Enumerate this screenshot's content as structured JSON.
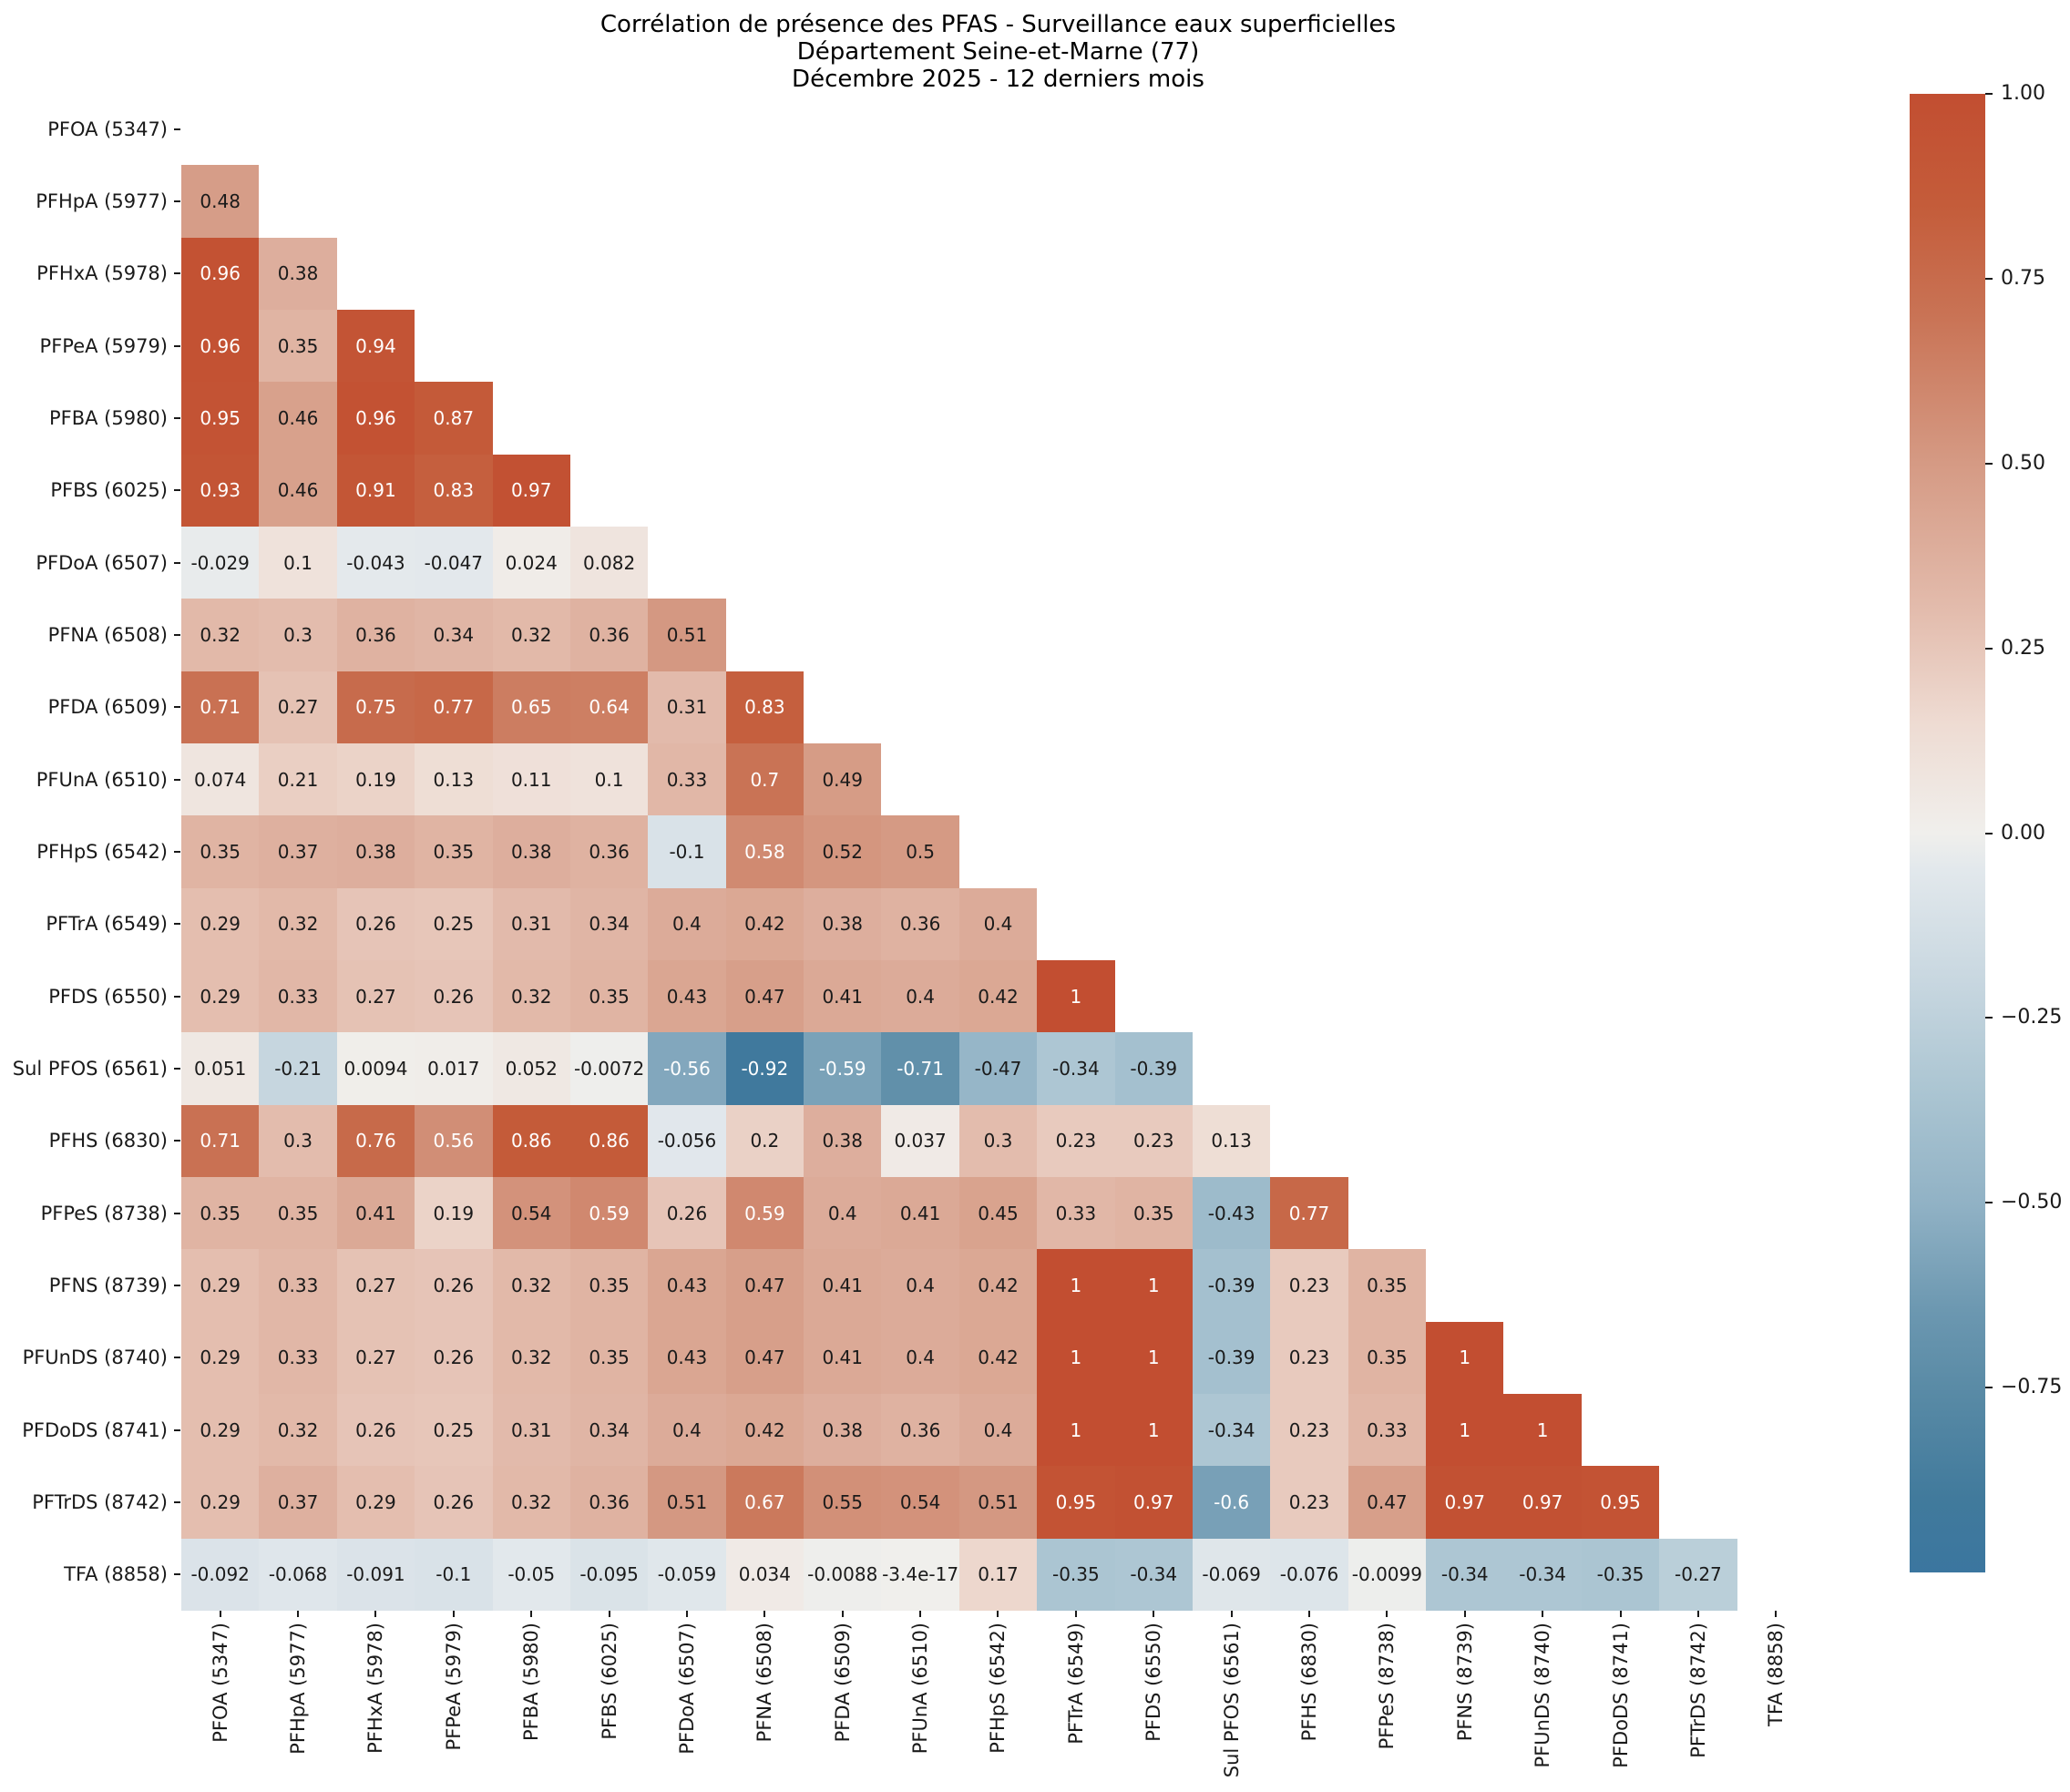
{
  "title": {
    "line1": "Corrélation de présence des PFAS - Surveillance eaux superficielles",
    "line2": "Département Seine-et-Marne (77)",
    "line3": "Décembre 2025 - 12 derniers mois"
  },
  "chart_data": {
    "type": "heatmap",
    "subtype": "lower-triangular-correlation-matrix",
    "labels": [
      "PFOA (5347)",
      "PFHpA (5977)",
      "PFHxA (5978)",
      "PFPeA (5979)",
      "PFBA (5980)",
      "PFBS (6025)",
      "PFDoA (6507)",
      "PFNA (6508)",
      "PFDA (6509)",
      "PFUnA (6510)",
      "PFHpS (6542)",
      "PFTrA (6549)",
      "PFDS (6550)",
      "Sul PFOS (6561)",
      "PFHS (6830)",
      "PFPeS (8738)",
      "PFNS (8739)",
      "PFUnDS (8740)",
      "PFDoDS (8741)",
      "PFTrDS (8742)",
      "TFA (8858)"
    ],
    "rows": [
      {
        "label": "PFOA (5347)",
        "values": []
      },
      {
        "label": "PFHpA (5977)",
        "values": [
          "0.48"
        ]
      },
      {
        "label": "PFHxA (5978)",
        "values": [
          "0.96",
          "0.38"
        ]
      },
      {
        "label": "PFPeA (5979)",
        "values": [
          "0.96",
          "0.35",
          "0.94"
        ]
      },
      {
        "label": "PFBA (5980)",
        "values": [
          "0.95",
          "0.46",
          "0.96",
          "0.87"
        ]
      },
      {
        "label": "PFBS (6025)",
        "values": [
          "0.93",
          "0.46",
          "0.91",
          "0.83",
          "0.97"
        ]
      },
      {
        "label": "PFDoA (6507)",
        "values": [
          "-0.029",
          "0.1",
          "-0.043",
          "-0.047",
          "0.024",
          "0.082"
        ]
      },
      {
        "label": "PFNA (6508)",
        "values": [
          "0.32",
          "0.3",
          "0.36",
          "0.34",
          "0.32",
          "0.36",
          "0.51"
        ]
      },
      {
        "label": "PFDA (6509)",
        "values": [
          "0.71",
          "0.27",
          "0.75",
          "0.77",
          "0.65",
          "0.64",
          "0.31",
          "0.83"
        ]
      },
      {
        "label": "PFUnA (6510)",
        "values": [
          "0.074",
          "0.21",
          "0.19",
          "0.13",
          "0.11",
          "0.1",
          "0.33",
          "0.7",
          "0.49"
        ]
      },
      {
        "label": "PFHpS (6542)",
        "values": [
          "0.35",
          "0.37",
          "0.38",
          "0.35",
          "0.38",
          "0.36",
          "-0.1",
          "0.58",
          "0.52",
          "0.5"
        ]
      },
      {
        "label": "PFTrA (6549)",
        "values": [
          "0.29",
          "0.32",
          "0.26",
          "0.25",
          "0.31",
          "0.34",
          "0.4",
          "0.42",
          "0.38",
          "0.36",
          "0.4"
        ]
      },
      {
        "label": "PFDS (6550)",
        "values": [
          "0.29",
          "0.33",
          "0.27",
          "0.26",
          "0.32",
          "0.35",
          "0.43",
          "0.47",
          "0.41",
          "0.4",
          "0.42",
          "1"
        ]
      },
      {
        "label": "Sul PFOS (6561)",
        "values": [
          "0.051",
          "-0.21",
          "0.0094",
          "0.017",
          "0.052",
          "-0.0072",
          "-0.56",
          "-0.92",
          "-0.59",
          "-0.71",
          "-0.47",
          "-0.34",
          "-0.39"
        ]
      },
      {
        "label": "PFHS (6830)",
        "values": [
          "0.71",
          "0.3",
          "0.76",
          "0.56",
          "0.86",
          "0.86",
          "-0.056",
          "0.2",
          "0.38",
          "0.037",
          "0.3",
          "0.23",
          "0.23",
          "0.13"
        ]
      },
      {
        "label": "PFPeS (8738)",
        "values": [
          "0.35",
          "0.35",
          "0.41",
          "0.19",
          "0.54",
          "0.59",
          "0.26",
          "0.59",
          "0.4",
          "0.41",
          "0.45",
          "0.33",
          "0.35",
          "-0.43",
          "0.77"
        ]
      },
      {
        "label": "PFNS (8739)",
        "values": [
          "0.29",
          "0.33",
          "0.27",
          "0.26",
          "0.32",
          "0.35",
          "0.43",
          "0.47",
          "0.41",
          "0.4",
          "0.42",
          "1",
          "1",
          "-0.39",
          "0.23",
          "0.35"
        ]
      },
      {
        "label": "PFUnDS (8740)",
        "values": [
          "0.29",
          "0.33",
          "0.27",
          "0.26",
          "0.32",
          "0.35",
          "0.43",
          "0.47",
          "0.41",
          "0.4",
          "0.42",
          "1",
          "1",
          "-0.39",
          "0.23",
          "0.35",
          "1"
        ]
      },
      {
        "label": "PFDoDS (8741)",
        "values": [
          "0.29",
          "0.32",
          "0.26",
          "0.25",
          "0.31",
          "0.34",
          "0.4",
          "0.42",
          "0.38",
          "0.36",
          "0.4",
          "1",
          "1",
          "-0.34",
          "0.23",
          "0.33",
          "1",
          "1"
        ]
      },
      {
        "label": "PFTrDS (8742)",
        "values": [
          "0.29",
          "0.37",
          "0.29",
          "0.26",
          "0.32",
          "0.36",
          "0.51",
          "0.67",
          "0.55",
          "0.54",
          "0.51",
          "0.95",
          "0.97",
          "-0.6",
          "0.23",
          "0.47",
          "0.97",
          "0.97",
          "0.95"
        ]
      },
      {
        "label": "TFA (8858)",
        "values": [
          "-0.092",
          "-0.068",
          "-0.091",
          "-0.1",
          "-0.05",
          "-0.095",
          "-0.059",
          "0.034",
          "-0.0088",
          "-3.4e-17",
          "0.17",
          "-0.35",
          "-0.34",
          "-0.069",
          "-0.076",
          "-0.0099",
          "-0.34",
          "-0.34",
          "-0.35",
          "-0.27"
        ]
      }
    ],
    "colorbar": {
      "vmin": -1,
      "vmax": 1,
      "tick_values": [
        1.0,
        0.75,
        0.5,
        0.25,
        0.0,
        -0.25,
        -0.5,
        -0.75
      ],
      "tick_labels": [
        "1.00",
        "0.75",
        "0.50",
        "0.25",
        "0.00",
        "−0.25",
        "−0.50",
        "−0.75"
      ]
    },
    "colormap_stops": [
      [
        -1.0,
        "#3b769f"
      ],
      [
        -0.9,
        "#417a9c"
      ],
      [
        -0.75,
        "#5a8ba6"
      ],
      [
        -0.65,
        "#6b97b0"
      ],
      [
        -0.5,
        "#91b2c5"
      ],
      [
        -0.35,
        "#abc5d2"
      ],
      [
        -0.2,
        "#c8d7e0"
      ],
      [
        -0.05,
        "#e2e8ec"
      ],
      [
        0.0,
        "#f0efec"
      ],
      [
        0.15,
        "#eedbd2"
      ],
      [
        0.3,
        "#e3bcad"
      ],
      [
        0.5,
        "#d59a84"
      ],
      [
        0.7,
        "#c97355"
      ],
      [
        0.85,
        "#c45c3a"
      ],
      [
        1.0,
        "#c24e31"
      ]
    ],
    "annotation_text_colors": {
      "light_cells": "#1a1a1a",
      "dark_cells": "#ffffff"
    },
    "grid": false,
    "legend_position": "right-colorbar"
  }
}
